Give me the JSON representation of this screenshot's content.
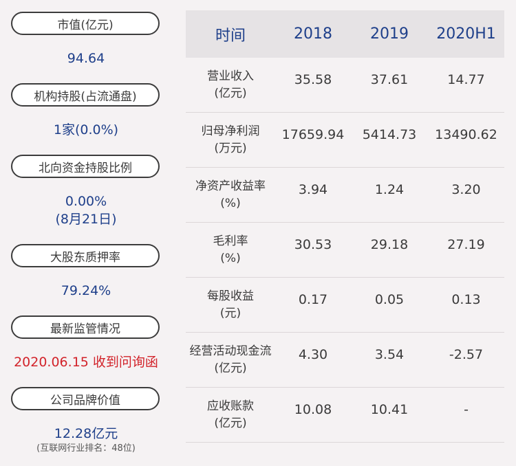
{
  "left_panel": [
    {
      "label": "市值(亿元)",
      "value": "94.64"
    },
    {
      "label": "机构持股(占流通盘)",
      "value": "1家(0.0%)"
    },
    {
      "label": "北向资金持股比例",
      "value": "0.00%",
      "value2": "(8月21日)"
    },
    {
      "label": "大股东质押率",
      "value": "79.24%"
    },
    {
      "label": "最新监管情况",
      "value": "2020.06.15 收到问询函"
    },
    {
      "label": "公司品牌价值",
      "value": "12.28亿元",
      "note": "(互联网行业排名：48位)"
    }
  ],
  "table": {
    "headers": [
      "时间",
      "2018",
      "2019",
      "2020H1"
    ],
    "rows": [
      {
        "name": "营业收入",
        "unit": "(亿元)",
        "values": [
          "35.58",
          "37.61",
          "14.77"
        ]
      },
      {
        "name": "归母净利润",
        "unit": "(万元)",
        "values": [
          "17659.94",
          "5414.73",
          "13490.62"
        ]
      },
      {
        "name": "净资产收益率",
        "unit": "(%)",
        "values": [
          "3.94",
          "1.24",
          "3.20"
        ]
      },
      {
        "name": "毛利率",
        "unit": "(%)",
        "values": [
          "30.53",
          "29.18",
          "27.19"
        ]
      },
      {
        "name": "每股收益",
        "unit": "(元)",
        "values": [
          "0.17",
          "0.05",
          "0.13"
        ]
      },
      {
        "name": "经营活动现金流",
        "unit": "(亿元)",
        "values": [
          "4.30",
          "3.54",
          "-2.57"
        ]
      },
      {
        "name": "应收账款",
        "unit": "(亿元)",
        "values": [
          "10.08",
          "10.41",
          "-"
        ]
      }
    ]
  },
  "colors": {
    "value_blue": "#1e3f8a",
    "alert_red": "#d2232a",
    "background": "#f5f2f3",
    "header_bg": "#e6e3e5"
  }
}
